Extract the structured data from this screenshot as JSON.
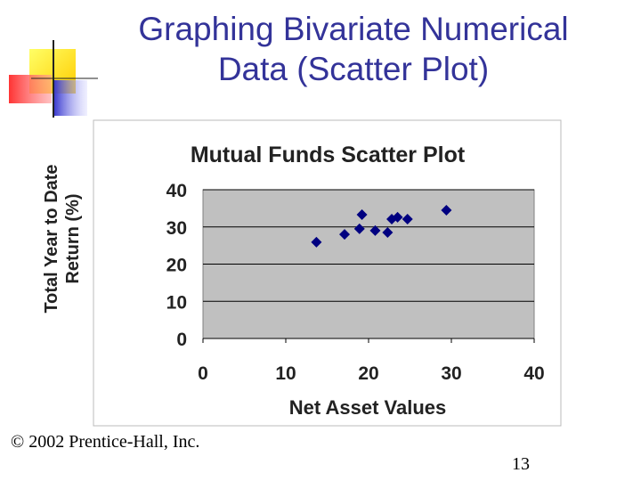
{
  "slide": {
    "title_lines": [
      "Graphing Bivariate Numerical",
      "Data (Scatter Plot)"
    ],
    "footer": "© 2002 Prentice-Hall, Inc.",
    "page_number": "13"
  },
  "chart_data": {
    "type": "scatter",
    "title": "Mutual Funds Scatter Plot",
    "xlabel": "Net Asset Values",
    "ylabel": "Total Year to Date Return (%)",
    "x": [
      13.7,
      17.1,
      18.9,
      19.2,
      20.8,
      22.3,
      22.8,
      23.5,
      24.7,
      29.4
    ],
    "y": [
      25.9,
      28.0,
      29.5,
      33.3,
      29.0,
      28.5,
      32.1,
      32.6,
      32.1,
      34.5
    ],
    "color": "#000080",
    "xlim": [
      0,
      40
    ],
    "ylim": [
      0,
      40
    ],
    "xticks": [
      0,
      10,
      20,
      30,
      40
    ],
    "yticks": [
      0,
      10,
      20,
      30,
      40
    ],
    "grid": true
  }
}
